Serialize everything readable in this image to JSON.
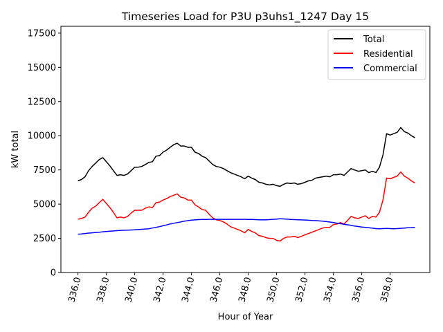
{
  "chart_data": {
    "type": "line",
    "title": "Timeseries Load for P3U p3uhs1_1247  Day 15",
    "xlabel": "Hour of Year",
    "ylabel": "kW total",
    "xlim": [
      334.8,
      360.8
    ],
    "ylim": [
      0,
      18000
    ],
    "xticks": [
      336.0,
      338.0,
      340.0,
      342.0,
      344.0,
      346.0,
      348.0,
      350.0,
      352.0,
      354.0,
      356.0,
      358.0
    ],
    "xtick_labels": [
      "336.0",
      "338.0",
      "340.0",
      "342.0",
      "344.0",
      "346.0",
      "348.0",
      "350.0",
      "352.0",
      "354.0",
      "356.0",
      "358.0"
    ],
    "yticks": [
      0,
      2500,
      5000,
      7500,
      10000,
      12500,
      15000,
      17500
    ],
    "ytick_labels": [
      "0",
      "2500",
      "5000",
      "7500",
      "10000",
      "12500",
      "15000",
      "17500"
    ],
    "legend_position": "upper right",
    "grid": false,
    "x": [
      336.0,
      336.25,
      336.5,
      336.75,
      337.0,
      337.25,
      337.5,
      337.75,
      338.0,
      338.25,
      338.5,
      338.75,
      339.0,
      339.25,
      339.5,
      339.75,
      340.0,
      340.25,
      340.5,
      340.75,
      341.0,
      341.25,
      341.5,
      341.75,
      342.0,
      342.25,
      342.5,
      342.75,
      343.0,
      343.25,
      343.5,
      343.75,
      344.0,
      344.25,
      344.5,
      344.75,
      345.0,
      345.25,
      345.5,
      345.75,
      346.0,
      346.25,
      346.5,
      346.75,
      347.0,
      347.25,
      347.5,
      347.75,
      348.0,
      348.25,
      348.5,
      348.75,
      349.0,
      349.25,
      349.5,
      349.75,
      350.0,
      350.25,
      350.5,
      350.75,
      351.0,
      351.25,
      351.5,
      351.75,
      352.0,
      352.25,
      352.5,
      352.75,
      353.0,
      353.25,
      353.5,
      353.75,
      354.0,
      354.25,
      354.5,
      354.75,
      355.0,
      355.25,
      355.5,
      355.75,
      356.0,
      356.25,
      356.5,
      356.75,
      357.0,
      357.25,
      357.5,
      357.75,
      358.0,
      358.25,
      358.5,
      358.75,
      359.0,
      359.25,
      359.5,
      359.75
    ],
    "series": [
      {
        "name": "Total",
        "color": "#000000",
        "values": [
          6700,
          6800,
          7000,
          7450,
          7750,
          8000,
          8250,
          8400,
          8100,
          7800,
          7450,
          7100,
          7150,
          7100,
          7200,
          7450,
          7700,
          7700,
          7750,
          7900,
          8050,
          8100,
          8500,
          8550,
          8800,
          8950,
          9150,
          9350,
          9450,
          9250,
          9250,
          9150,
          9150,
          8800,
          8700,
          8500,
          8400,
          8150,
          7900,
          7750,
          7700,
          7600,
          7450,
          7300,
          7200,
          7100,
          7000,
          6850,
          7050,
          6900,
          6800,
          6600,
          6550,
          6450,
          6400,
          6450,
          6350,
          6300,
          6450,
          6550,
          6500,
          6550,
          6450,
          6500,
          6600,
          6700,
          6750,
          6900,
          6950,
          7000,
          7050,
          7000,
          7150,
          7150,
          7200,
          7100,
          7350,
          7600,
          7500,
          7400,
          7450,
          7500,
          7300,
          7400,
          7300,
          7700,
          8600,
          10150,
          10050,
          10150,
          10250,
          10600,
          10300,
          10200,
          10000,
          9850
        ]
      },
      {
        "name": "Residential",
        "color": "#ff0000",
        "values": [
          3900,
          3950,
          4050,
          4400,
          4700,
          4850,
          5100,
          5350,
          5050,
          4750,
          4400,
          4000,
          4050,
          4000,
          4100,
          4350,
          4550,
          4550,
          4550,
          4700,
          4800,
          4750,
          5100,
          5150,
          5300,
          5400,
          5550,
          5650,
          5750,
          5500,
          5450,
          5300,
          5300,
          4950,
          4800,
          4600,
          4550,
          4250,
          4000,
          3850,
          3800,
          3700,
          3550,
          3350,
          3250,
          3150,
          3050,
          2900,
          3150,
          3000,
          2900,
          2700,
          2650,
          2550,
          2500,
          2500,
          2350,
          2300,
          2500,
          2600,
          2600,
          2650,
          2550,
          2650,
          2750,
          2850,
          2950,
          3050,
          3150,
          3250,
          3300,
          3300,
          3500,
          3550,
          3650,
          3550,
          3800,
          4100,
          4000,
          3950,
          4050,
          4150,
          3950,
          4100,
          4050,
          4400,
          5300,
          6900,
          6850,
          6950,
          7050,
          7350,
          7050,
          6900,
          6700,
          6550
        ]
      },
      {
        "name": "Commercial",
        "color": "#0000ff",
        "values": [
          2800,
          2820,
          2850,
          2880,
          2900,
          2930,
          2950,
          2980,
          3000,
          3020,
          3040,
          3060,
          3080,
          3090,
          3100,
          3110,
          3120,
          3140,
          3160,
          3180,
          3200,
          3250,
          3300,
          3350,
          3420,
          3480,
          3550,
          3600,
          3650,
          3700,
          3750,
          3790,
          3830,
          3850,
          3870,
          3880,
          3880,
          3890,
          3890,
          3890,
          3890,
          3890,
          3890,
          3890,
          3890,
          3890,
          3890,
          3890,
          3880,
          3880,
          3870,
          3860,
          3850,
          3860,
          3870,
          3890,
          3910,
          3930,
          3920,
          3900,
          3880,
          3870,
          3860,
          3850,
          3840,
          3820,
          3800,
          3790,
          3770,
          3750,
          3720,
          3690,
          3650,
          3610,
          3570,
          3530,
          3490,
          3450,
          3400,
          3360,
          3320,
          3300,
          3270,
          3240,
          3210,
          3200,
          3210,
          3220,
          3210,
          3200,
          3210,
          3230,
          3250,
          3270,
          3280,
          3300
        ]
      }
    ]
  }
}
